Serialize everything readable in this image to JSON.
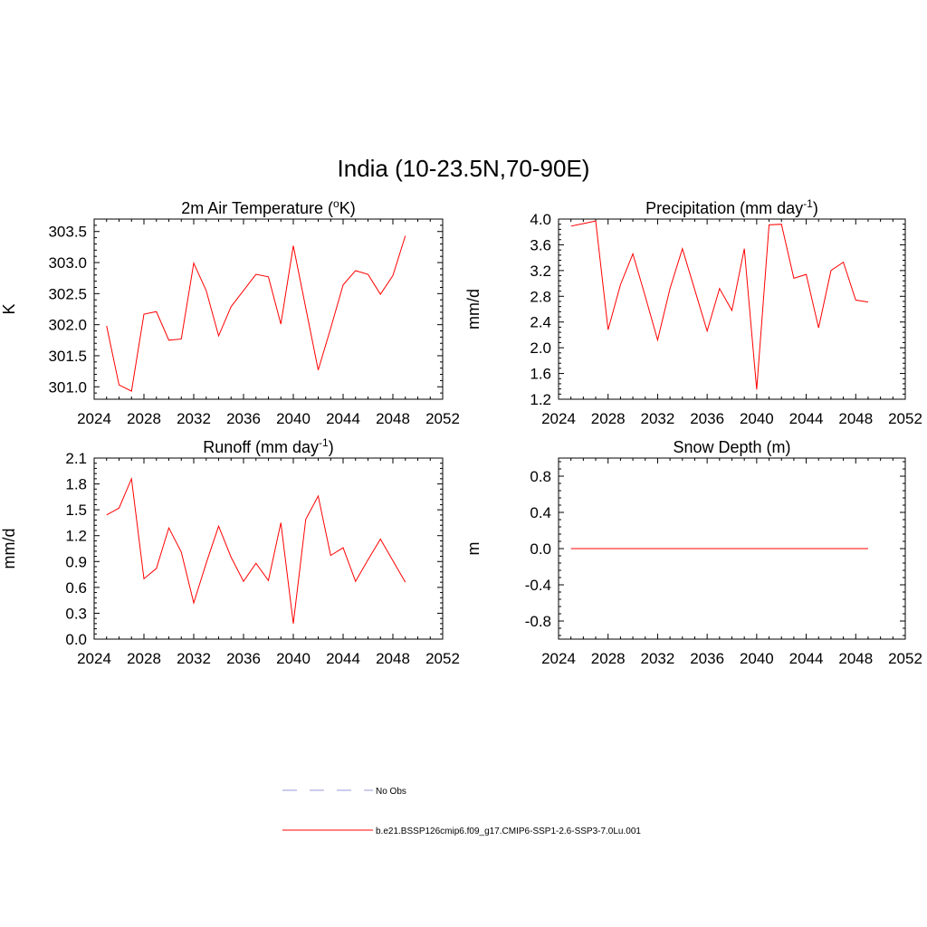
{
  "figure": {
    "title": "India (10-23.5N,70-90E)"
  },
  "colors": {
    "series": "#ff0000",
    "obs": "#9999dd",
    "axis": "#000000"
  },
  "chart_data": [
    {
      "type": "line",
      "title": "2m Air Temperature (°K)",
      "title_base": "2m Air Temperature (",
      "title_sup": "o",
      "title_tail": "K)",
      "xlabel": "",
      "ylabel": "K",
      "xlim": [
        2024,
        2052
      ],
      "ylim": [
        300.8,
        303.7
      ],
      "xticks": [
        2024,
        2028,
        2032,
        2036,
        2040,
        2044,
        2048,
        2052
      ],
      "yticks": [
        "301.0",
        "301.5",
        "302.0",
        "302.5",
        "303.0",
        "303.5"
      ],
      "series": [
        {
          "x": [
            2025,
            2026,
            2027,
            2028,
            2029,
            2030,
            2031,
            2032,
            2033,
            2034,
            2035,
            2036,
            2037,
            2038,
            2039,
            2040,
            2041,
            2042,
            2043,
            2044,
            2045,
            2046,
            2047,
            2048,
            2049
          ],
          "y": [
            301.98,
            301.03,
            300.93,
            302.17,
            302.21,
            301.75,
            301.77,
            302.99,
            302.55,
            301.82,
            302.29,
            302.55,
            302.81,
            302.77,
            302.01,
            303.27,
            302.27,
            301.27,
            301.94,
            302.64,
            302.87,
            302.81,
            302.49,
            302.79,
            303.43
          ]
        }
      ]
    },
    {
      "type": "line",
      "title": "Precipitation (mm day-1)",
      "title_base": "Precipitation (mm day",
      "title_sup": "-1",
      "title_tail": ")",
      "xlabel": "",
      "ylabel": "mm/d",
      "xlim": [
        2024,
        2052
      ],
      "ylim": [
        1.2,
        4.0
      ],
      "xticks": [
        2024,
        2028,
        2032,
        2036,
        2040,
        2044,
        2048,
        2052
      ],
      "yticks": [
        "1.2",
        "1.6",
        "2.0",
        "2.4",
        "2.8",
        "3.2",
        "3.6",
        "4.0"
      ],
      "series": [
        {
          "x": [
            2025,
            2026,
            2027,
            2028,
            2029,
            2030,
            2031,
            2032,
            2033,
            2034,
            2035,
            2036,
            2037,
            2038,
            2039,
            2040,
            2041,
            2042,
            2043,
            2044,
            2045,
            2046,
            2047,
            2048,
            2049
          ],
          "y": [
            3.89,
            3.93,
            3.97,
            2.28,
            2.98,
            3.46,
            2.8,
            2.12,
            2.92,
            3.54,
            2.9,
            2.26,
            2.92,
            2.58,
            3.54,
            1.35,
            3.91,
            3.92,
            3.08,
            3.14,
            2.31,
            3.2,
            3.33,
            2.74,
            2.71
          ]
        }
      ]
    },
    {
      "type": "line",
      "title": "Runoff (mm day-1)",
      "title_base": "Runoff (mm day",
      "title_sup": "-1",
      "title_tail": ")",
      "xlabel": "",
      "ylabel": "mm/d",
      "xlim": [
        2024,
        2052
      ],
      "ylim": [
        0.0,
        2.1
      ],
      "xticks": [
        2024,
        2028,
        2032,
        2036,
        2040,
        2044,
        2048,
        2052
      ],
      "yticks": [
        "0.0",
        "0.3",
        "0.6",
        "0.9",
        "1.2",
        "1.5",
        "1.8",
        "2.1"
      ],
      "series": [
        {
          "x": [
            2025,
            2026,
            2027,
            2028,
            2029,
            2030,
            2031,
            2032,
            2033,
            2034,
            2035,
            2036,
            2037,
            2038,
            2039,
            2040,
            2041,
            2042,
            2043,
            2044,
            2045,
            2046,
            2047,
            2048,
            2049
          ],
          "y": [
            1.44,
            1.52,
            1.86,
            0.7,
            0.82,
            1.29,
            1.01,
            0.42,
            0.88,
            1.31,
            0.95,
            0.67,
            0.88,
            0.68,
            1.35,
            0.18,
            1.39,
            1.66,
            0.97,
            1.06,
            0.67,
            0.92,
            1.16,
            0.91,
            0.66
          ]
        }
      ]
    },
    {
      "type": "line",
      "title": "Snow Depth (m)",
      "title_base": "Snow Depth (m)",
      "title_sup": "",
      "title_tail": "",
      "xlabel": "",
      "ylabel": "m",
      "xlim": [
        2024,
        2052
      ],
      "ylim": [
        -1.0,
        1.0
      ],
      "xticks": [
        2024,
        2028,
        2032,
        2036,
        2040,
        2044,
        2048,
        2052
      ],
      "yticks": [
        "-0.8",
        "-0.4",
        "0.0",
        "0.4",
        "0.8"
      ],
      "series": [
        {
          "x": [
            2025,
            2049
          ],
          "y": [
            0.0,
            0.0
          ]
        }
      ]
    }
  ],
  "legend": {
    "items": [
      {
        "label": "No Obs",
        "style": "dashed"
      },
      {
        "label": "b.e21.BSSP126cmip6.f09_g17.CMIP6-SSP1-2.6-SSP3-7.0Lu.001",
        "style": "solid"
      }
    ]
  }
}
